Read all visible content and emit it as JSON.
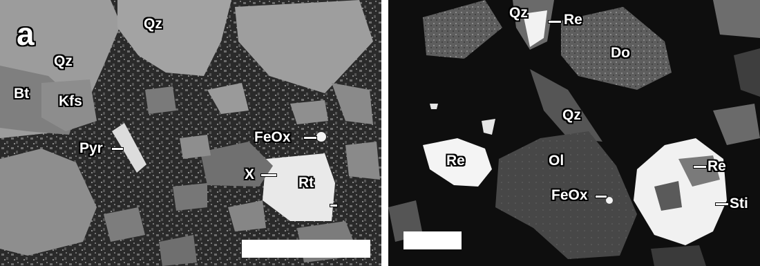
{
  "figure": {
    "left_panel": {
      "panel_letter": "a",
      "labels": {
        "qz_top": "Qz",
        "qz_left": "Qz",
        "bt": "Bt",
        "kfs": "Kfs",
        "pyr": "Pyr",
        "feox": "FeOx",
        "x": "X",
        "rt": "Rt"
      }
    },
    "right_panel": {
      "labels": {
        "qz_top": "Qz",
        "re_top": "Re",
        "do": "Do",
        "qz_mid": "Qz",
        "re_left": "Re",
        "ol": "Ol",
        "feox": "FeOx",
        "re_right": "Re",
        "sti": "Sti"
      }
    },
    "colors": {
      "matrix_dark": "#1a1a1a",
      "grain_gray": "#8a8a8a",
      "bright_phase": "#f2f2f2",
      "label_text": "#ffffff"
    }
  }
}
